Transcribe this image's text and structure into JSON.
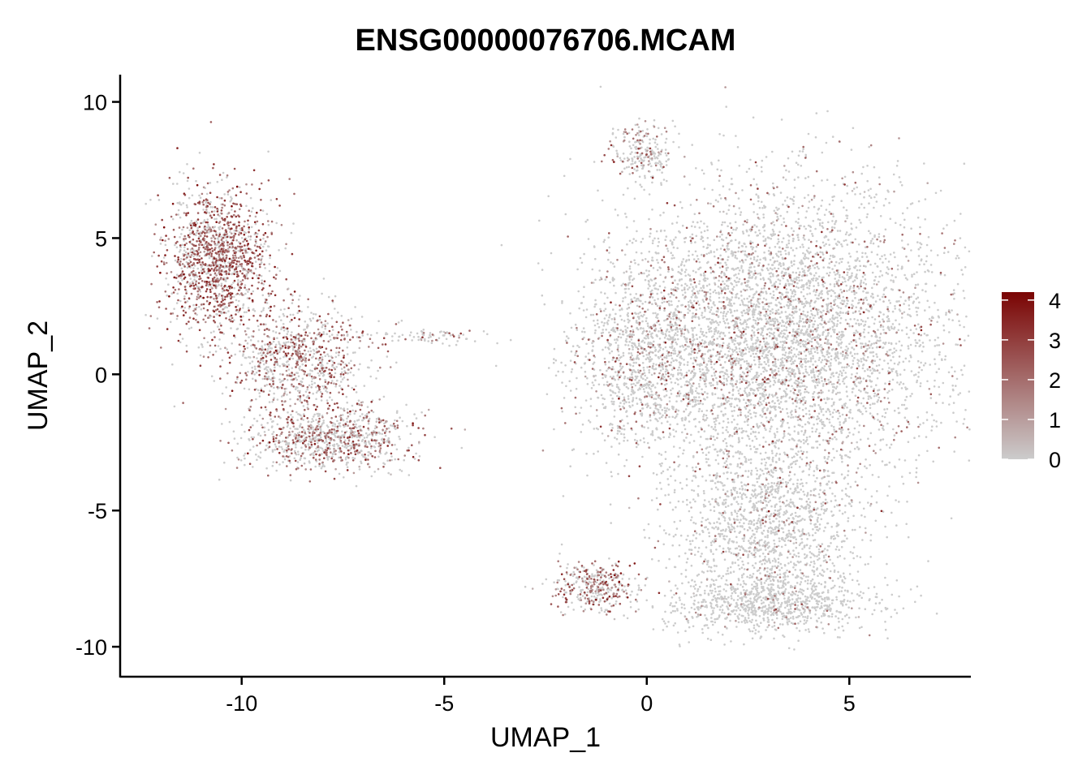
{
  "chart_data": {
    "type": "scatter",
    "title": "ENSG00000076706.MCAM",
    "xlabel": "UMAP_1",
    "ylabel": "UMAP_2",
    "xlim": [
      -13,
      8
    ],
    "ylim": [
      -11.1,
      11
    ],
    "x_ticks": [
      -10,
      -5,
      0,
      5
    ],
    "x_tick_labels": [
      "-10",
      "-5",
      "0",
      "5"
    ],
    "y_ticks": [
      -10,
      -5,
      0,
      5,
      10
    ],
    "y_tick_labels": [
      "-10",
      "-5",
      "0",
      "5",
      "10"
    ],
    "grid": false,
    "legend": {
      "placement": "right",
      "type": "colorbar",
      "min": 0,
      "max": 4.2,
      "ticks": [
        0,
        1,
        2,
        3,
        4
      ],
      "tick_labels": [
        "0",
        "1",
        "2",
        "3",
        "4"
      ]
    },
    "colors": {
      "low": "#cccccc",
      "high": "#7a0403"
    },
    "clusters": [
      {
        "name": "left-upper",
        "cx": -10.6,
        "cy": 4.2,
        "sx": 0.65,
        "sy": 1.3,
        "n": 1400,
        "mean_expression": 1.6,
        "expressed_fraction": 0.62
      },
      {
        "name": "left-middle",
        "cx": -8.6,
        "cy": 0.6,
        "sx": 0.85,
        "sy": 1.0,
        "n": 900,
        "mean_expression": 1.3,
        "expressed_fraction": 0.45
      },
      {
        "name": "left-lower",
        "cx": -7.8,
        "cy": -2.4,
        "sx": 1.0,
        "sy": 0.6,
        "n": 900,
        "mean_expression": 1.2,
        "expressed_fraction": 0.4
      },
      {
        "name": "left-tail",
        "cx": -5.4,
        "cy": 1.4,
        "sx": 0.9,
        "sy": 0.15,
        "n": 80,
        "mean_expression": 0.9,
        "expressed_fraction": 0.25
      },
      {
        "name": "right-main",
        "cx": 3.2,
        "cy": 1.5,
        "sx": 2.1,
        "sy": 2.6,
        "n": 5200,
        "mean_expression": 0.9,
        "expressed_fraction": 0.15
      },
      {
        "name": "right-lower-stem",
        "cx": 3.0,
        "cy": -5.5,
        "sx": 1.1,
        "sy": 1.5,
        "n": 1400,
        "mean_expression": 0.6,
        "expressed_fraction": 0.08
      },
      {
        "name": "right-bottom",
        "cx": 3.0,
        "cy": -8.4,
        "sx": 1.3,
        "sy": 0.55,
        "n": 900,
        "mean_expression": 0.5,
        "expressed_fraction": 0.05
      },
      {
        "name": "right-lower-left-blob",
        "cx": -1.3,
        "cy": -7.8,
        "sx": 0.5,
        "sy": 0.45,
        "n": 350,
        "mean_expression": 1.4,
        "expressed_fraction": 0.45
      },
      {
        "name": "right-top-spur",
        "cx": -0.1,
        "cy": 8.1,
        "sx": 0.35,
        "sy": 0.55,
        "n": 220,
        "mean_expression": 1.0,
        "expressed_fraction": 0.3
      },
      {
        "name": "right-left-edge",
        "cx": 0.0,
        "cy": 0.6,
        "sx": 0.9,
        "sy": 1.6,
        "n": 900,
        "mean_expression": 1.0,
        "expressed_fraction": 0.2
      }
    ]
  }
}
